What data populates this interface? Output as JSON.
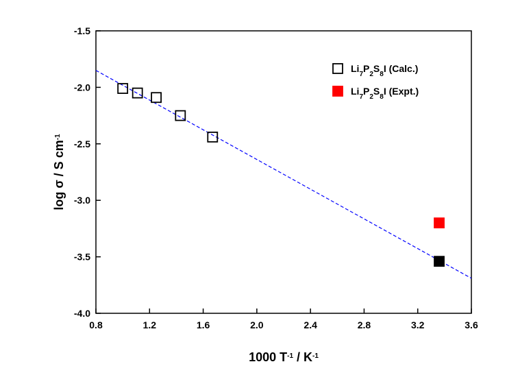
{
  "chart_data": {
    "type": "scatter",
    "xlabel": [
      "1000 T",
      "-1",
      " / K",
      "-1"
    ],
    "ylabel": [
      "log σ / S cm",
      "-1"
    ],
    "xlim": [
      0.8,
      3.6
    ],
    "ylim": [
      -4.0,
      -1.5
    ],
    "xticks": [
      0.8,
      1.2,
      1.6,
      {
        "value": 2,
        "label": "2.0"
      },
      2.4,
      2.8,
      3.2,
      3.6
    ],
    "yticks": [
      {
        "value": -4,
        "label": "-4.0"
      },
      -3.5,
      {
        "value": -3,
        "label": "-3.0"
      },
      -2.5,
      {
        "value": -2,
        "label": "-2.0"
      },
      -1.5
    ],
    "series": [
      {
        "name": [
          "Li",
          "7",
          "P",
          "2",
          "S",
          "8",
          "I (Calc.)"
        ],
        "color": "#000000",
        "filled": false,
        "x": [
          1.0,
          1.11,
          1.25,
          1.43,
          1.67
        ],
        "values": [
          -2.01,
          -2.05,
          -2.09,
          -2.25,
          -2.44
        ]
      },
      {
        "name": [
          "Li",
          "7",
          "P",
          "2",
          "S",
          "8",
          "I (Expt.)"
        ],
        "color": "#ff0000",
        "filled": true,
        "x": [
          3.36
        ],
        "values": [
          -3.2
        ]
      },
      {
        "color": "#000000",
        "filled": true,
        "x": [
          3.36
        ],
        "values": [
          -3.54
        ]
      }
    ],
    "fit": {
      "color": "#0000ff",
      "dashed": true,
      "x": [
        0.8,
        3.6
      ],
      "values": [
        -1.85,
        -3.69
      ]
    }
  }
}
